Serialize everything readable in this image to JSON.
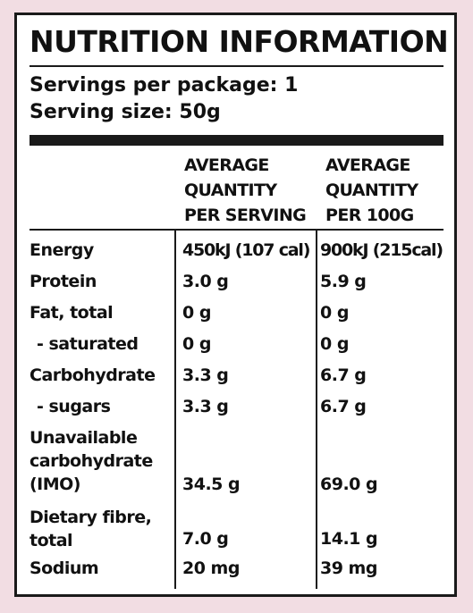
{
  "title": "NUTRITION INFORMATION",
  "servings_per_package": "Servings per package: 1",
  "serving_size": "Serving size: 50g",
  "columns": {
    "per_serving": [
      "AVERAGE",
      "QUANTITY",
      "PER SERVING"
    ],
    "per_100g": [
      "AVERAGE",
      "QUANTITY",
      "PER 100G"
    ]
  },
  "rows": [
    {
      "label": [
        "Energy"
      ],
      "serving": "450kJ (107 cal)",
      "per100": "900kJ (215cal)"
    },
    {
      "label": [
        "Protein"
      ],
      "serving": "3.0 g",
      "per100": "5.9 g"
    },
    {
      "label": [
        "Fat, total"
      ],
      "serving": "0 g",
      "per100": "0 g"
    },
    {
      "label": [
        "- saturated"
      ],
      "serving": "0 g",
      "per100": "0 g"
    },
    {
      "label": [
        "Carbohydrate"
      ],
      "serving": "3.3 g",
      "per100": "6.7 g"
    },
    {
      "label": [
        "- sugars"
      ],
      "serving": "3.3 g",
      "per100": "6.7 g"
    },
    {
      "label": [
        "Unavailable",
        "carbohydrate",
        "(IMO)"
      ],
      "serving": "34.5 g",
      "per100": "69.0 g"
    },
    {
      "label": [
        "Dietary fibre,",
        "total"
      ],
      "serving": "7.0 g",
      "per100": "14.1 g"
    },
    {
      "label": [
        "Sodium"
      ],
      "serving": "20 mg",
      "per100": "39 mg"
    }
  ]
}
